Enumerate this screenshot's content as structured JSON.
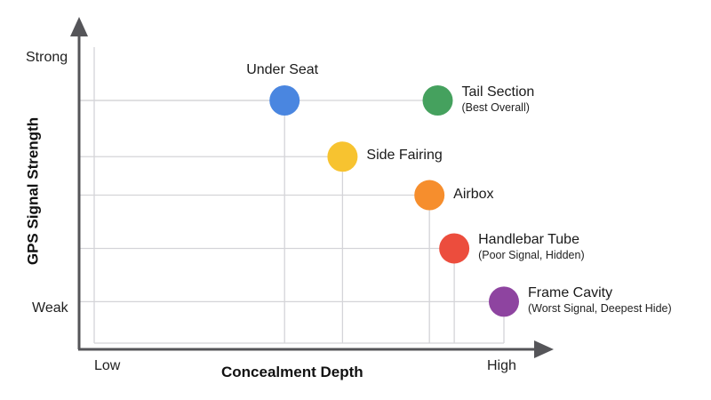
{
  "chart_data": {
    "type": "scatter",
    "title": "",
    "xlabel": "Concealment Depth",
    "ylabel": "GPS Signal Strength",
    "x_tick_labels": {
      "low": "Low",
      "high": "High"
    },
    "y_tick_labels": {
      "high": "Strong",
      "low": "Weak"
    },
    "xlim": [
      0,
      10
    ],
    "ylim": [
      0,
      10
    ],
    "grid": "drop-lines to axes from each point",
    "legend": "none (direct labels)",
    "points": [
      {
        "name": "Under Seat",
        "note": "",
        "x": 4.6,
        "y": 8.2,
        "color": "#4A86E0",
        "label_pos": "above"
      },
      {
        "name": "Tail Section",
        "note": "(Best Overall)",
        "x": 8.3,
        "y": 8.2,
        "color": "#45A15E",
        "label_pos": "right"
      },
      {
        "name": "Side Fairing",
        "note": "",
        "x": 6.0,
        "y": 6.3,
        "color": "#F7C330",
        "label_pos": "right"
      },
      {
        "name": "Airbox",
        "note": "",
        "x": 8.1,
        "y": 5.0,
        "color": "#F68E2D",
        "label_pos": "right"
      },
      {
        "name": "Handlebar Tube",
        "note": "(Poor Signal, Hidden)",
        "x": 8.7,
        "y": 3.2,
        "color": "#EC4D3D",
        "label_pos": "right"
      },
      {
        "name": "Frame Cavity",
        "note": "(Worst Signal, Deepest Hide)",
        "x": 9.9,
        "y": 1.4,
        "color": "#8E44A0",
        "label_pos": "right"
      }
    ]
  },
  "colors": {
    "axis": "#555559",
    "grid": "#d4d4d8"
  }
}
